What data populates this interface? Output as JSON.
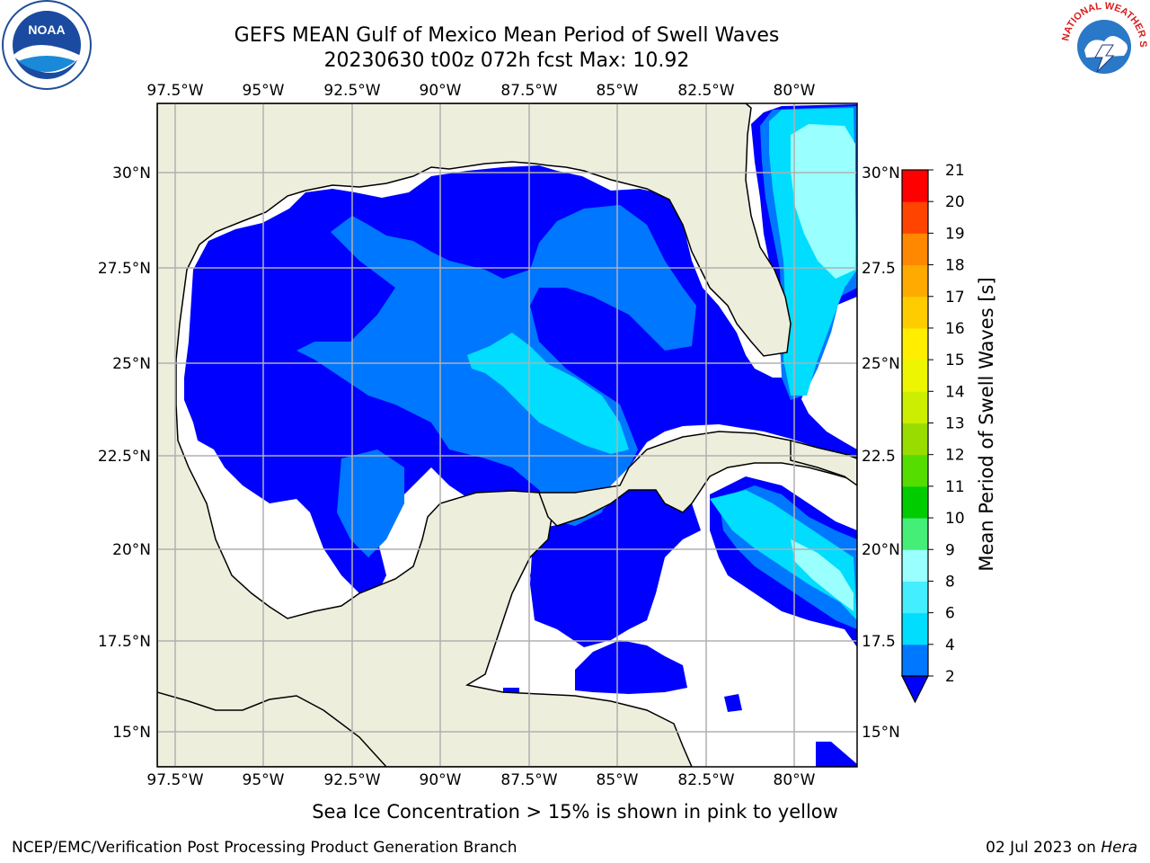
{
  "header": {
    "title_line1": "GEFS MEAN Gulf of Mexico Mean Period of Swell Waves",
    "title_line2": "20230630 t00z 072h fcst   Max: 10.92"
  },
  "logos": {
    "left": "NOAA",
    "right_text": "NATIONAL WEATHER SERVICE"
  },
  "map": {
    "longitude_ticks": [
      "97.5°W",
      "95°W",
      "92.5°W",
      "90°W",
      "87.5°W",
      "85°W",
      "82.5°W",
      "80°W"
    ],
    "latitude_ticks_left": [
      "30°N",
      "27.5°N",
      "25°N",
      "22.5°N",
      "20°N",
      "17.5°N",
      "15°N"
    ],
    "latitude_ticks_right": [
      "30°N",
      "27.5",
      "25°N",
      "22.5",
      "20°N",
      "17.5",
      "15°N"
    ],
    "colors": {
      "land": "#EEEEDD",
      "no_swell": "#FFFFFF",
      "grid": "#B0B0B0"
    }
  },
  "colorbar": {
    "label": "Mean Period of Swell Waves [s]",
    "ticks": [
      "2",
      "4",
      "6",
      "8",
      "9",
      "10",
      "11",
      "12",
      "13",
      "14",
      "15",
      "16",
      "17",
      "18",
      "19",
      "20",
      "21"
    ],
    "colors": [
      "#0000FF",
      "#0077FF",
      "#00DDFF",
      "#44EEFF",
      "#99FFFF",
      "#44EE77",
      "#00CC00",
      "#55DD00",
      "#99DD00",
      "#CCEE00",
      "#EEF500",
      "#FFEE00",
      "#FFCC00",
      "#FFAA00",
      "#FF8800",
      "#FF4400",
      "#FF0000"
    ]
  },
  "footer": {
    "note": "Sea Ice Concentration > 15% is shown in pink to yellow",
    "credit": "NCEP/EMC/Verification Post Processing Product Generation Branch",
    "date_prefix": "02 Jul 2023 on",
    "machine": "Hera"
  }
}
